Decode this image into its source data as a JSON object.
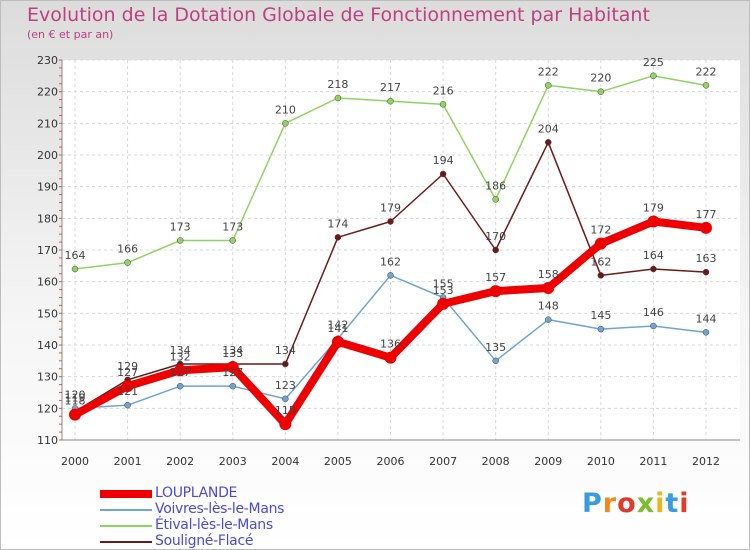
{
  "chart_data": {
    "type": "line",
    "title": "Evolution de la Dotation Globale de Fonctionnement par Habitant",
    "subtitle": "(en € et par an)",
    "x": [
      "2000",
      "2001",
      "2002",
      "2003",
      "2004",
      "2005",
      "2006",
      "2007",
      "2008",
      "2009",
      "2010",
      "2011",
      "2012"
    ],
    "yticks": [
      110,
      120,
      130,
      140,
      150,
      160,
      170,
      180,
      190,
      200,
      210,
      220,
      230
    ],
    "ylim": [
      110,
      230
    ],
    "grid": true,
    "legend_position": "bottom-left",
    "series": [
      {
        "name": "Étival-lès-le-Mans",
        "color": "#8fd462",
        "values": [
          164,
          166,
          173,
          173,
          210,
          218,
          217,
          216,
          186,
          222,
          220,
          225,
          222
        ]
      },
      {
        "name": "Souligné-Flacé",
        "color": "#6b1a1a",
        "values": [
          119,
          129,
          134,
          134,
          134,
          174,
          179,
          194,
          170,
          204,
          162,
          164,
          163
        ]
      },
      {
        "name": "Voivres-lès-le-Mans",
        "color": "#6fa4cf",
        "values": [
          120,
          121,
          127,
          127,
          123,
          142,
          162,
          155,
          135,
          148,
          145,
          146,
          144
        ]
      },
      {
        "name": "LOUPLANDE",
        "color": "#ee0000",
        "values": [
          118,
          127,
          132,
          133,
          115,
          141,
          136,
          153,
          157,
          158,
          172,
          179,
          177
        ]
      }
    ],
    "legend_order": [
      "LOUPLANDE",
      "Voivres-lès-le-Mans",
      "Étival-lès-le-Mans",
      "Souligné-Flacé"
    ]
  },
  "logo": {
    "text": [
      "P",
      "r",
      "o",
      "x",
      "i",
      "t",
      "i"
    ]
  }
}
